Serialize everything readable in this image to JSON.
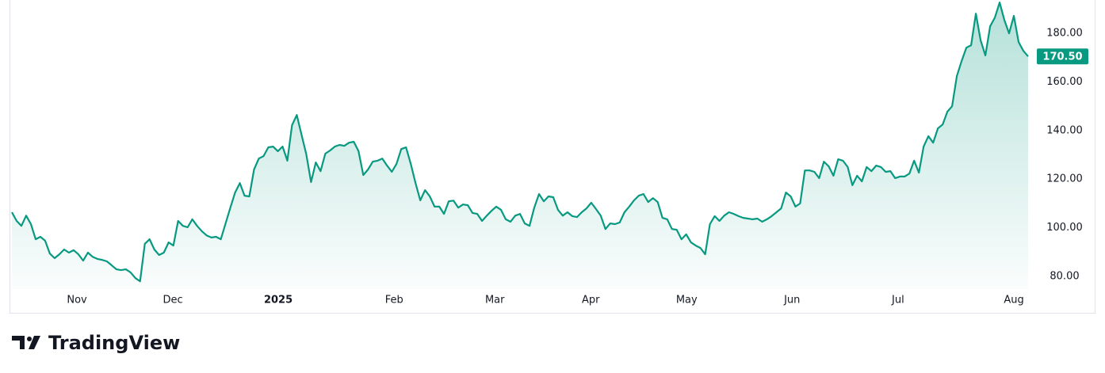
{
  "chart_data": {
    "type": "area",
    "brand": "TradingView",
    "x": [
      0,
      1,
      2,
      3,
      4,
      5,
      6,
      7,
      8,
      9,
      10,
      11,
      12,
      13,
      14,
      15,
      16,
      17,
      18,
      19,
      20,
      21,
      22,
      23,
      24,
      25,
      26,
      27,
      28,
      29,
      30,
      31,
      32,
      33,
      34,
      35,
      36,
      37,
      38,
      39,
      40,
      41,
      42,
      43,
      44,
      45,
      46,
      47,
      48,
      49,
      50,
      51,
      52,
      53,
      54,
      55,
      56,
      57,
      58,
      59,
      60,
      61,
      62,
      63,
      64,
      65,
      66,
      67,
      68,
      69,
      70,
      71,
      72,
      73,
      74,
      75,
      76,
      77,
      78,
      79,
      80,
      81,
      82,
      83,
      84,
      85,
      86,
      87,
      88,
      89,
      90,
      91,
      92,
      93,
      94,
      95,
      96,
      97,
      98,
      99,
      100,
      101,
      102,
      103,
      104,
      105,
      106,
      107,
      108,
      109,
      110,
      111,
      112,
      113,
      114,
      115,
      116,
      117,
      118,
      119,
      120,
      121,
      122,
      123,
      124,
      125,
      126,
      127,
      128,
      129,
      130,
      131,
      132,
      133,
      134,
      135,
      136,
      137,
      138,
      139,
      140,
      141,
      142,
      143,
      144,
      145,
      146,
      147,
      148,
      149,
      150,
      151,
      152,
      153,
      154,
      155,
      156,
      157,
      158,
      159,
      160,
      161,
      162,
      163,
      164,
      165,
      166,
      167,
      168,
      169,
      170,
      171,
      172,
      173,
      174,
      175,
      176,
      177,
      178,
      179,
      180,
      181,
      182,
      183,
      184,
      185,
      186,
      187,
      188,
      189,
      190,
      191,
      192,
      193,
      194,
      195,
      196,
      197,
      198,
      199,
      200,
      201,
      202,
      203,
      204,
      205,
      206,
      207,
      208,
      209,
      210,
      211,
      212,
      213,
      214
    ],
    "series": [
      {
        "color": "#089981",
        "values": [
          106.4,
          102.8,
          100.8,
          105,
          101.5,
          95.3,
          96.3,
          94.7,
          89.4,
          87.5,
          89.1,
          91.1,
          89.8,
          90.8,
          89.1,
          86.5,
          89.8,
          88.1,
          87.2,
          86.8,
          86.2,
          84.6,
          82.9,
          82.6,
          82.9,
          81.6,
          79.3,
          78,
          93.4,
          95.3,
          91.1,
          88.8,
          89.8,
          94,
          92.7,
          102.8,
          100.8,
          100.2,
          103.5,
          100.8,
          98.6,
          96.9,
          96,
          96.3,
          95.3,
          101.8,
          108.3,
          114.5,
          118.4,
          113.2,
          112.9,
          124,
          128.5,
          129.5,
          133.1,
          133.4,
          131.5,
          133.4,
          127.6,
          142.2,
          146.4,
          138.3,
          130.2,
          118.8,
          126.9,
          123.3,
          130.5,
          131.8,
          133.4,
          134.1,
          133.7,
          135,
          135.4,
          131.5,
          121.7,
          124,
          127.2,
          127.6,
          128.5,
          125.6,
          123,
          126.3,
          132.4,
          133.1,
          126.3,
          118.4,
          111.3,
          115.5,
          112.9,
          108.7,
          108.7,
          105.7,
          110.9,
          111.2,
          108.3,
          109.6,
          109.3,
          106.1,
          105.7,
          102.8,
          105,
          107,
          108.7,
          107.4,
          103.5,
          102.5,
          105,
          105.7,
          101.8,
          100.8,
          108.3,
          113.9,
          110.9,
          112.9,
          112.6,
          107.4,
          105,
          106.4,
          104.8,
          104.4,
          106.4,
          108,
          110.3,
          107.7,
          105,
          99.5,
          101.8,
          101.5,
          102.2,
          106.4,
          108.7,
          111.3,
          113.2,
          113.9,
          110.6,
          112.2,
          110.6,
          104.1,
          103.5,
          99.5,
          99.2,
          95.3,
          97.3,
          94,
          92.7,
          91.7,
          89.1,
          101.5,
          104.8,
          102.8,
          105,
          106.4,
          105.7,
          104.8,
          104.1,
          103.8,
          103.5,
          103.8,
          102.5,
          103.5,
          104.8,
          106.4,
          108,
          114.5,
          112.9,
          108.7,
          110,
          123.6,
          123.6,
          123,
          120.4,
          127.2,
          125.3,
          121.4,
          128.2,
          127.6,
          125,
          117.5,
          121.4,
          119.1,
          125,
          123.3,
          125.6,
          125,
          123,
          123.3,
          120.4,
          121.1,
          121.1,
          122.3,
          127.6,
          122.7,
          133.4,
          137.7,
          135,
          140.9,
          142.5,
          147.8,
          150,
          162.4,
          168.6,
          174.1,
          175.1,
          188.1,
          177.1,
          170.9,
          182.9,
          186.5,
          192.7,
          185.5,
          180,
          187.2,
          176.4,
          172.8,
          170.5
        ]
      }
    ],
    "last_price": {
      "value": 170.5,
      "label": "170.50"
    },
    "xlim": [
      0,
      214
    ],
    "xticks": [
      {
        "value": 13.7,
        "label": "Nov"
      },
      {
        "value": 33.9,
        "label": "Dec"
      },
      {
        "value": 56.1,
        "label": "2025"
      },
      {
        "value": 80.5,
        "label": "Feb"
      },
      {
        "value": 101.7,
        "label": "Mar"
      },
      {
        "value": 121.9,
        "label": "Apr"
      },
      {
        "value": 142.1,
        "label": "May"
      },
      {
        "value": 164.3,
        "label": "Jun"
      },
      {
        "value": 186.6,
        "label": "Jul"
      },
      {
        "value": 211,
        "label": "Aug"
      }
    ],
    "ylim": [
      74.8,
      193.7
    ],
    "yticks": [
      {
        "value": 80,
        "label": "80.00"
      },
      {
        "value": 100,
        "label": "100.00"
      },
      {
        "value": 120,
        "label": "120.00"
      },
      {
        "value": 140,
        "label": "140.00"
      },
      {
        "value": 160,
        "label": "160.00"
      },
      {
        "value": 180,
        "label": "180.00"
      }
    ],
    "grid": false
  }
}
